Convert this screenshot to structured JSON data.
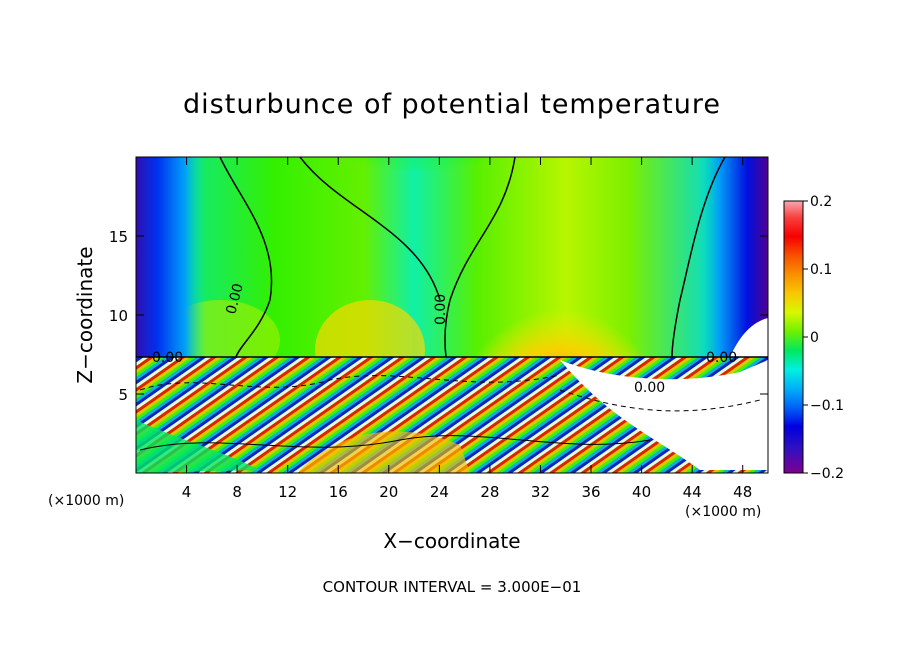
{
  "chart_data": {
    "type": "heatmap",
    "title": "disturbunce of potential temperature",
    "xlabel": "X−coordinate",
    "ylabel": "Z−coordinate",
    "x_unit": "(×1000 m)",
    "x_unit_right": "(×1000 m)",
    "xlim": [
      0,
      50
    ],
    "ylim": [
      0,
      20
    ],
    "x_ticks": [
      4,
      8,
      12,
      16,
      20,
      24,
      28,
      32,
      36,
      40,
      44,
      48
    ],
    "x_tick_labels": [
      "4",
      "8",
      "12",
      "16",
      "20",
      "24",
      "28",
      "32",
      "36",
      "40",
      "44",
      "48"
    ],
    "y_ticks": [
      5,
      10,
      15
    ],
    "y_tick_labels": [
      "5",
      "10",
      "15"
    ],
    "colorbar": {
      "range": [
        -0.2,
        0.2
      ],
      "ticks": [
        0.2,
        0.1,
        0,
        -0.1,
        -0.2
      ],
      "tick_labels": [
        "0.2",
        "0.1",
        "0",
        "−0.1",
        "−0.2"
      ],
      "colors": [
        "#f8a8b0",
        "#f83030",
        "#f80000",
        "#f86000",
        "#f89000",
        "#f8c000",
        "#e8f800",
        "#a0f000",
        "#40f000",
        "#00e080",
        "#00f0e0",
        "#00a8f8",
        "#0060f8",
        "#0000e0",
        "#3010c0",
        "#800090"
      ]
    },
    "contour_labels": [
      "0.00",
      "0.00",
      "0.00",
      "0.00",
      "0.00"
    ],
    "footer": "CONTOUR INTERVAL = 3.000E−01"
  }
}
